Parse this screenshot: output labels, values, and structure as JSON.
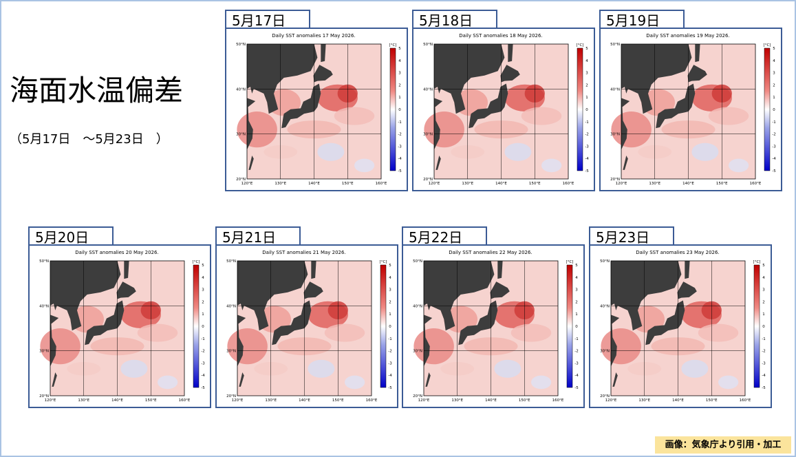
{
  "title": "海面水温偏差",
  "subtitle": "（5月17日　～5月23日　）",
  "panels": [
    {
      "date": "5月17日",
      "map_title": "Daily SST anomalies 17 May 2026."
    },
    {
      "date": "5月18日",
      "map_title": "Daily SST anomalies 18 May 2026."
    },
    {
      "date": "5月19日",
      "map_title": "Daily SST anomalies 19 May 2026."
    },
    {
      "date": "5月20日",
      "map_title": "Daily SST anomalies 20 May 2026."
    },
    {
      "date": "5月21日",
      "map_title": "Daily SST anomalies 21 May 2026."
    },
    {
      "date": "5月22日",
      "map_title": "Daily SST anomalies 22 May 2026."
    },
    {
      "date": "5月23日",
      "map_title": "Daily SST anomalies 23 May 2026."
    }
  ],
  "lat_labels": [
    "50°N",
    "40°N",
    "30°N",
    "20°N"
  ],
  "lon_labels": [
    "120°E",
    "130°E",
    "140°E",
    "150°E",
    "160°E"
  ],
  "colorbar_unit": "[°C]",
  "colorbar_ticks": [
    "5",
    "4",
    "3",
    "2",
    "1",
    "0",
    "-1",
    "-2",
    "-3",
    "-4",
    "-5"
  ],
  "credit": "画像：気象庁より引用・加工"
}
